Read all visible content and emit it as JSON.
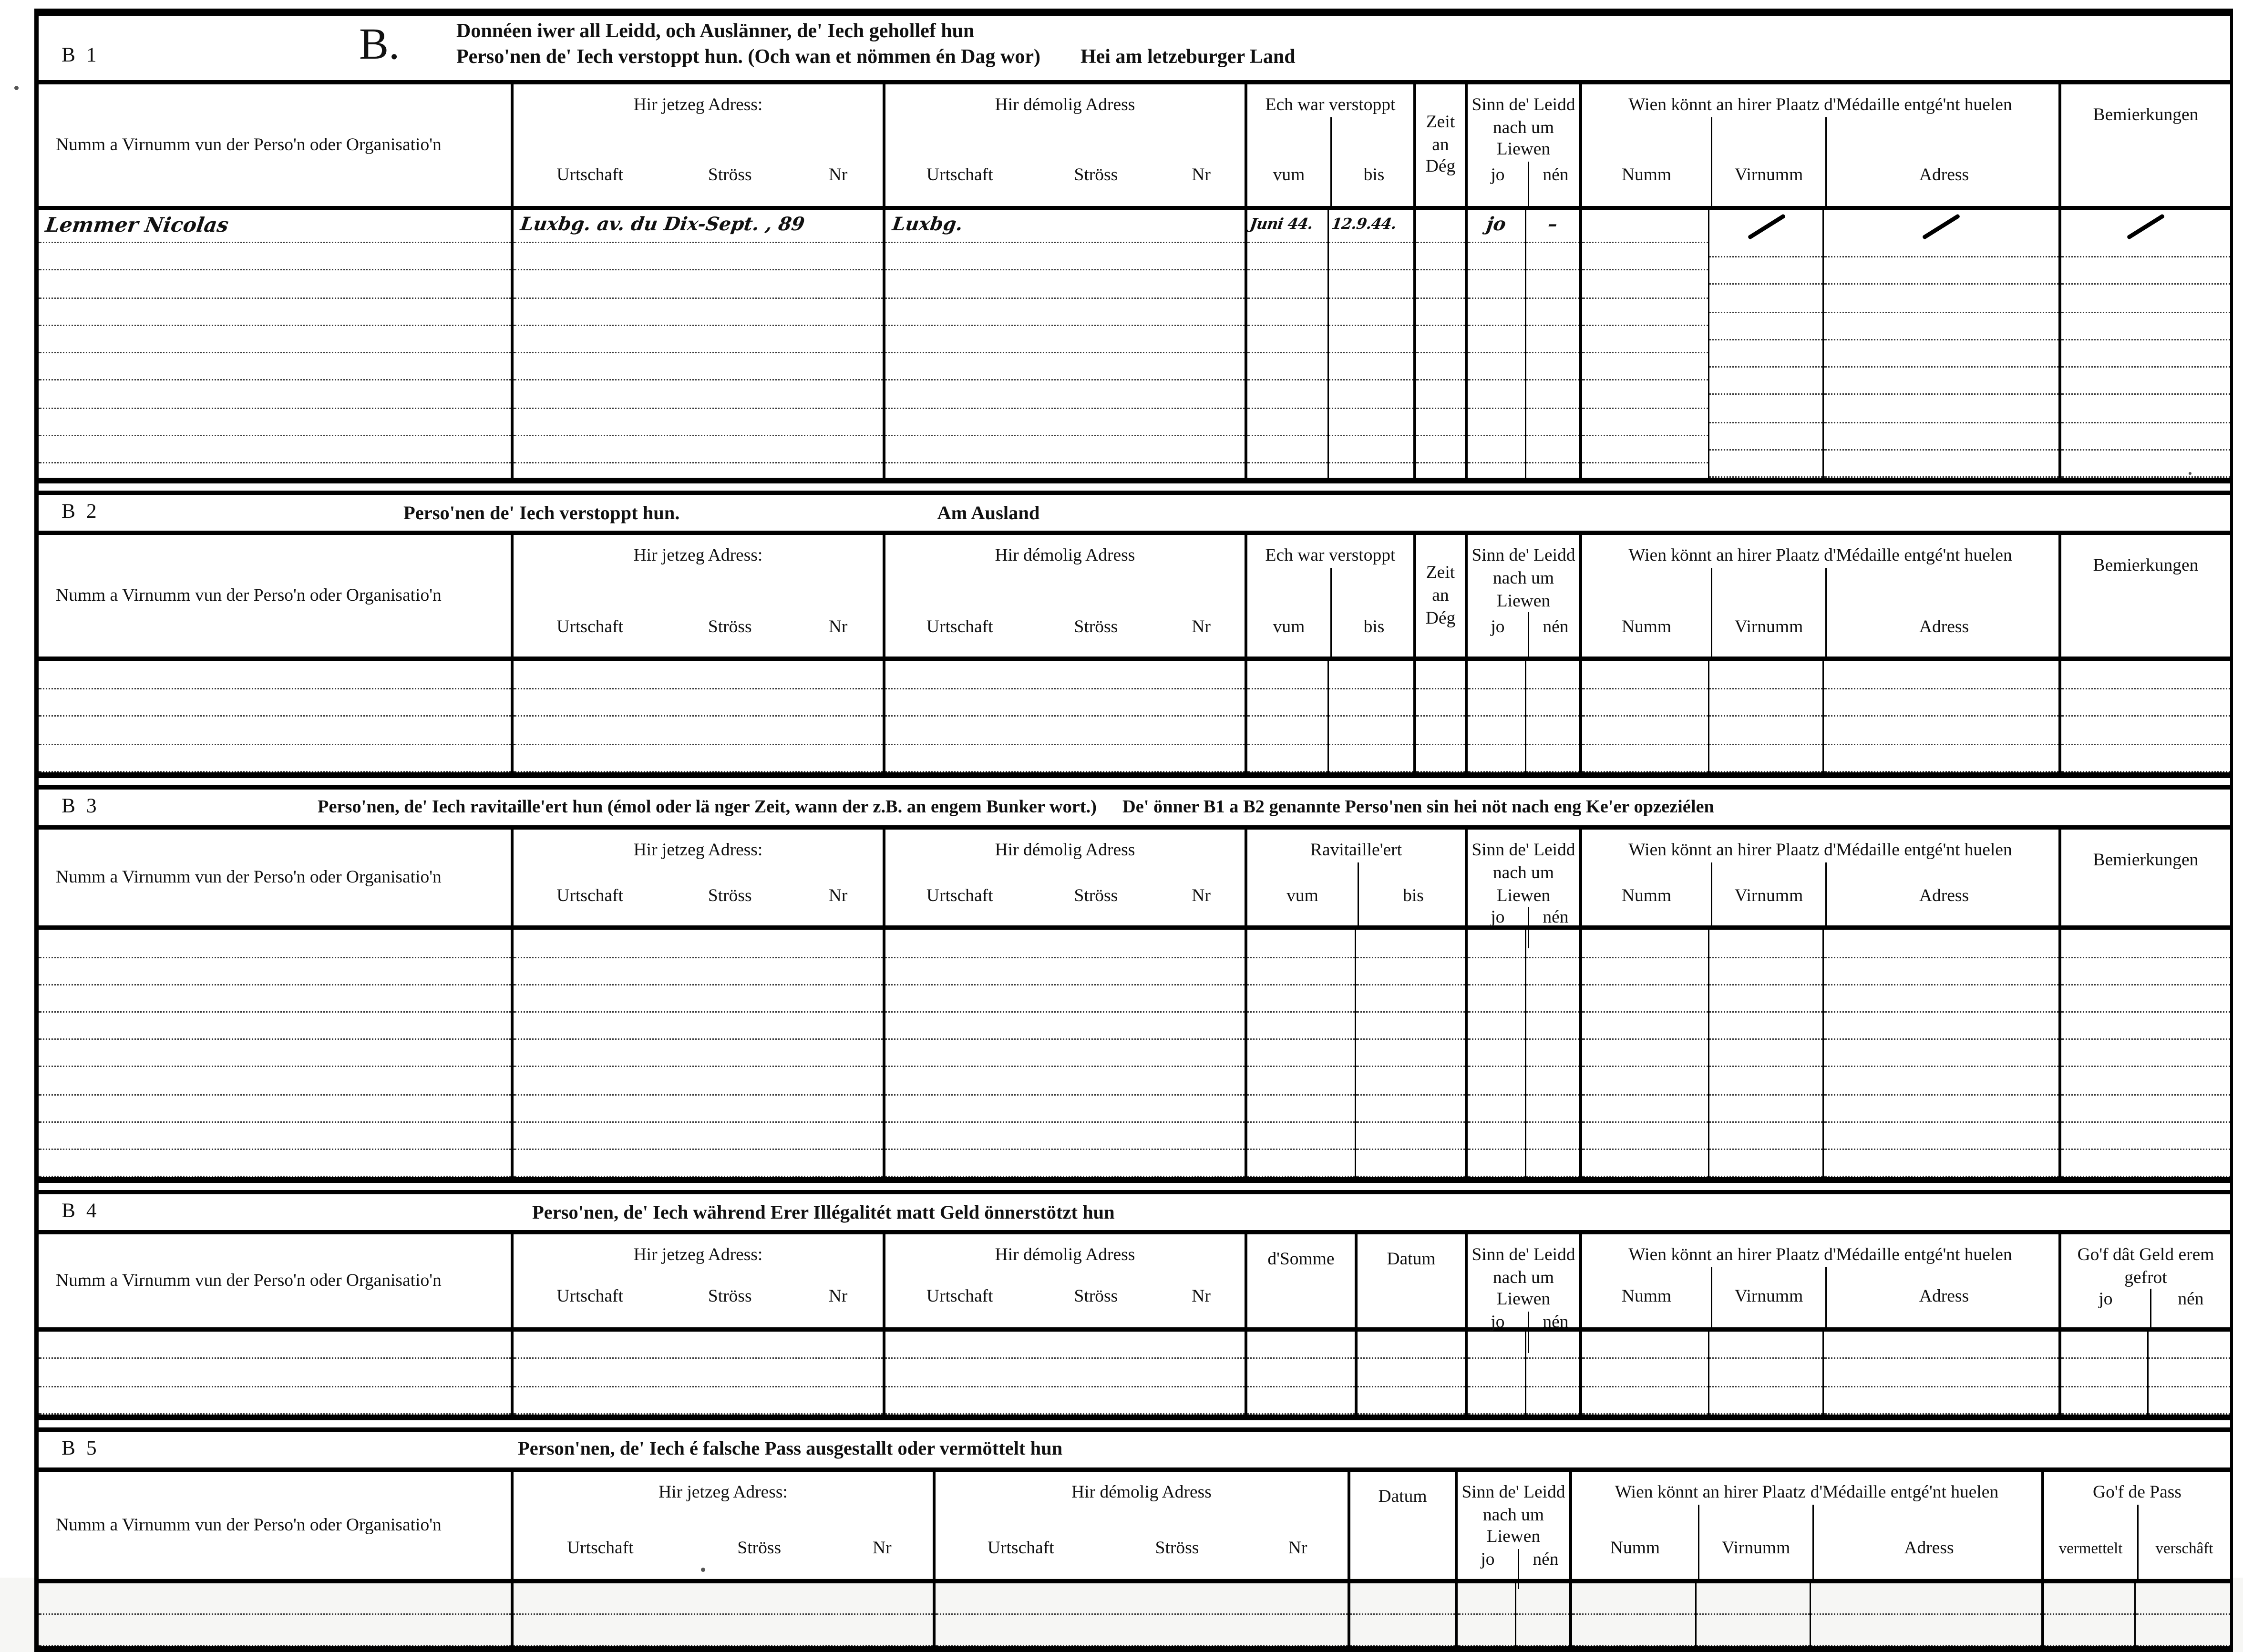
{
  "document": {
    "section_letter": "B.",
    "title_line1": "Donnéen iwer all Leidd, och Auslänner, de' Iech gehollef hun",
    "title_line2": "Perso'nen de' Iech verstoppt hun. (Och wan et nömmen én Dag wor)",
    "title_location": "Hei am letzeburger Land"
  },
  "labels": {
    "name_org": "Numm a Virnumm vun der Perso'n oder Organisatio'n",
    "current_address": "Hir jetzeg Adress:",
    "former_address": "Hir démolig Adress",
    "urtschaft": "Urtschaft",
    "stross": "Ströss",
    "nr": "Nr",
    "hidden_period": "Ech war verstoppt",
    "vum": "vum",
    "bis": "bis",
    "zeit_an_deg": "Zeit an Dég",
    "still_alive": "Sinn de' Leidd nach um Liewen",
    "jo": "jo",
    "nen": "nén",
    "medal": "Wien könnt an hirer Plaatz d'Médaille entgé'nt huelen",
    "numm": "Numm",
    "virnumm": "Virnumm",
    "adress": "Adress",
    "bemierkungen": "Bemierkungen",
    "ravitailleert": "Ravitaille'ert",
    "dsomme": "d'Somme",
    "datum": "Datum",
    "geld_gefrot": "Go'f dât Geld erem gefrot",
    "gof_de_pass": "Go'f de Pass",
    "vermettelt": "vermettelt",
    "verschaft": "verschâft"
  },
  "sections": {
    "b1": {
      "id": "B 1"
    },
    "b2": {
      "id": "B 2",
      "title": "Perso'nen de' Iech verstoppt hun.",
      "subtitle": "Am Ausland"
    },
    "b3": {
      "id": "B 3",
      "title": "Perso'nen, de' Iech ravitaille'ert hun (émol oder lä nger Zeit, wann der z.B. an engem Bunker wort.)",
      "note": "De' önner B1 a B2 genannte Perso'nen sin hei nöt nach eng Ke'er opzeziélen"
    },
    "b4": {
      "id": "B 4",
      "title": "Perso'nen, de' Iech während Erer Illégalitét matt Geld önnerstötzt hun"
    },
    "b5": {
      "id": "B 5",
      "title": "Person'nen, de' Iech é falsche Pass ausgestallt oder  vermöttelt hun"
    }
  },
  "entries": {
    "b1_row1": {
      "name": "Lemmer Nicolas",
      "current_address": "Luxbg. av. du Dix-Sept. , 89",
      "former_address": "Luxbg.",
      "hidden_from": "Juni 44.",
      "hidden_to": "12.9.44.",
      "alive_jo": "jo",
      "alive_nen": "–"
    }
  }
}
